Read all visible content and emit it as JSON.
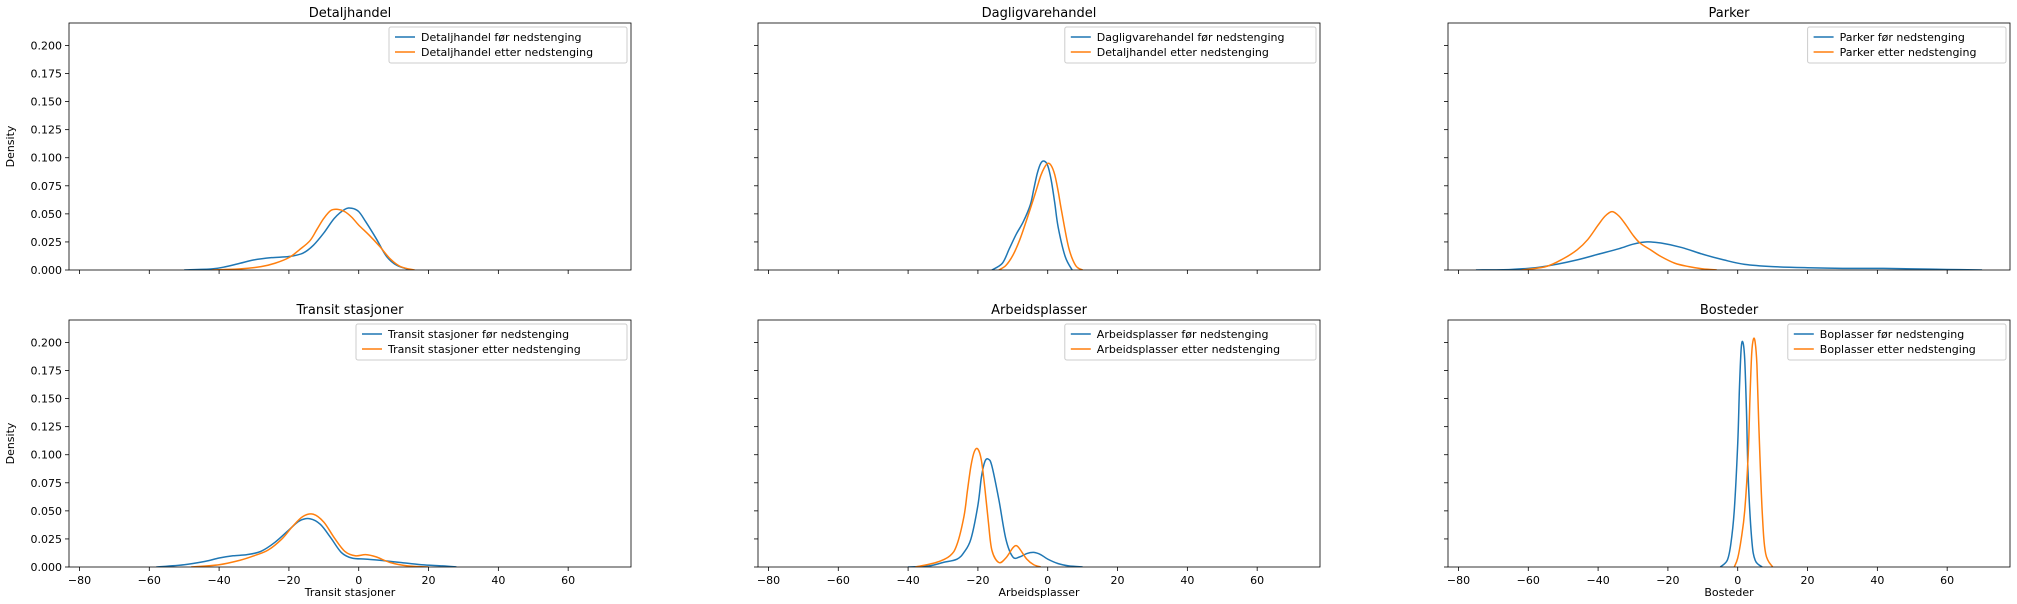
{
  "chart_data": [
    {
      "type": "line",
      "title": "Detaljhandel",
      "xlabel": "",
      "ylabel": "Density",
      "xlim": [
        -83,
        78
      ],
      "ylim": [
        0,
        0.22
      ],
      "xticks": [
        -80,
        -60,
        -40,
        -20,
        0,
        20,
        40,
        60
      ],
      "yticks": [
        0.0,
        0.025,
        0.05,
        0.075,
        0.1,
        0.125,
        0.15,
        0.175,
        0.2
      ],
      "legend": "top-right",
      "series": [
        {
          "name": "Detaljhandel før nedstenging",
          "color": "#1f77b4",
          "x": [
            -50,
            -42,
            -38,
            -34,
            -30,
            -25,
            -20,
            -16,
            -13,
            -10,
            -7,
            -4,
            -2,
            0,
            2,
            5,
            8,
            11,
            15
          ],
          "y": [
            0.0,
            0.001,
            0.003,
            0.006,
            0.009,
            0.011,
            0.012,
            0.015,
            0.022,
            0.033,
            0.046,
            0.054,
            0.055,
            0.052,
            0.043,
            0.028,
            0.012,
            0.004,
            0.0
          ]
        },
        {
          "name": "Detaljhandel etter nedstenging",
          "color": "#ff7f0e",
          "x": [
            -42,
            -34,
            -28,
            -24,
            -20,
            -17,
            -14,
            -12,
            -10,
            -8,
            -6,
            -4,
            -2,
            0,
            3,
            6,
            9,
            12,
            16
          ],
          "y": [
            0.0,
            0.001,
            0.003,
            0.006,
            0.011,
            0.018,
            0.026,
            0.036,
            0.046,
            0.053,
            0.054,
            0.052,
            0.047,
            0.04,
            0.031,
            0.021,
            0.01,
            0.003,
            0.0
          ]
        }
      ]
    },
    {
      "type": "line",
      "title": "Dagligvarehandel",
      "xlabel": "",
      "ylabel": "",
      "xlim": [
        -83,
        78
      ],
      "ylim": [
        0,
        0.22
      ],
      "xticks": [
        -80,
        -60,
        -40,
        -20,
        0,
        20,
        40,
        60
      ],
      "yticks": [
        0.0,
        0.025,
        0.05,
        0.075,
        0.1,
        0.125,
        0.15,
        0.175,
        0.2
      ],
      "legend": "top-right",
      "series": [
        {
          "name": "Dagligvarehandel før nedstenging",
          "color": "#1f77b4",
          "x": [
            -16,
            -13,
            -11,
            -9,
            -7,
            -5,
            -4,
            -3,
            -2,
            -1,
            0,
            1,
            2,
            3,
            5,
            7
          ],
          "y": [
            0.0,
            0.006,
            0.019,
            0.032,
            0.043,
            0.058,
            0.072,
            0.086,
            0.095,
            0.097,
            0.093,
            0.08,
            0.06,
            0.038,
            0.012,
            0.0
          ]
        },
        {
          "name": "Detaljhandel etter nedstenging",
          "color": "#ff7f0e",
          "x": [
            -14,
            -12,
            -10,
            -8,
            -6,
            -4,
            -3,
            -2,
            -1,
            0,
            1,
            2,
            3,
            4,
            6,
            8,
            10
          ],
          "y": [
            0.0,
            0.004,
            0.013,
            0.027,
            0.045,
            0.064,
            0.074,
            0.084,
            0.091,
            0.095,
            0.093,
            0.085,
            0.07,
            0.052,
            0.02,
            0.004,
            0.0
          ]
        }
      ]
    },
    {
      "type": "line",
      "title": "Parker",
      "xlabel": "",
      "ylabel": "",
      "xlim": [
        -83,
        78
      ],
      "ylim": [
        0,
        0.22
      ],
      "xticks": [
        -80,
        -60,
        -40,
        -20,
        0,
        20,
        40,
        60
      ],
      "yticks": [
        0.0,
        0.025,
        0.05,
        0.075,
        0.1,
        0.125,
        0.15,
        0.175,
        0.2
      ],
      "legend": "top-right",
      "series": [
        {
          "name": "Parker før nedstenging",
          "color": "#1f77b4",
          "x": [
            -75,
            -65,
            -58,
            -52,
            -46,
            -40,
            -34,
            -30,
            -26,
            -22,
            -16,
            -10,
            -4,
            2,
            10,
            20,
            30,
            40,
            50,
            60,
            70
          ],
          "y": [
            0.0,
            0.0005,
            0.002,
            0.005,
            0.009,
            0.014,
            0.019,
            0.023,
            0.025,
            0.024,
            0.02,
            0.014,
            0.009,
            0.005,
            0.003,
            0.002,
            0.0015,
            0.0015,
            0.001,
            0.0005,
            0.0
          ]
        },
        {
          "name": "Parker etter nedstenging",
          "color": "#ff7f0e",
          "x": [
            -62,
            -55,
            -50,
            -46,
            -43,
            -40,
            -38,
            -36,
            -34,
            -32,
            -30,
            -28,
            -25,
            -22,
            -18,
            -14,
            -10,
            -6
          ],
          "y": [
            0.0,
            0.003,
            0.01,
            0.018,
            0.027,
            0.04,
            0.048,
            0.052,
            0.048,
            0.04,
            0.031,
            0.024,
            0.018,
            0.012,
            0.006,
            0.003,
            0.001,
            0.0
          ]
        }
      ]
    },
    {
      "type": "line",
      "title": "Transit stasjoner",
      "xlabel": "Transit stasjoner",
      "ylabel": "Density",
      "xlim": [
        -83,
        78
      ],
      "ylim": [
        0,
        0.22
      ],
      "xticks": [
        -80,
        -60,
        -40,
        -20,
        0,
        20,
        40,
        60
      ],
      "yticks": [
        0.0,
        0.025,
        0.05,
        0.075,
        0.1,
        0.125,
        0.15,
        0.175,
        0.2
      ],
      "legend": "top-right",
      "series": [
        {
          "name": "Transit stasjoner før nedstenging",
          "color": "#1f77b4",
          "x": [
            -58,
            -50,
            -44,
            -40,
            -36,
            -32,
            -28,
            -24,
            -20,
            -17,
            -14,
            -11,
            -8,
            -5,
            -2,
            2,
            6,
            12,
            18,
            24,
            28
          ],
          "y": [
            0.0,
            0.002,
            0.005,
            0.008,
            0.01,
            0.011,
            0.014,
            0.022,
            0.033,
            0.041,
            0.043,
            0.038,
            0.026,
            0.013,
            0.008,
            0.007,
            0.006,
            0.004,
            0.002,
            0.001,
            0.0
          ]
        },
        {
          "name": "Transit stasjoner etter nedstenging",
          "color": "#ff7f0e",
          "x": [
            -48,
            -40,
            -34,
            -30,
            -26,
            -22,
            -19,
            -16,
            -13,
            -10,
            -7,
            -4,
            -1,
            2,
            5,
            9,
            14,
            20
          ],
          "y": [
            0.0,
            0.002,
            0.006,
            0.01,
            0.015,
            0.025,
            0.036,
            0.045,
            0.047,
            0.04,
            0.026,
            0.014,
            0.01,
            0.011,
            0.009,
            0.004,
            0.001,
            0.0
          ]
        }
      ]
    },
    {
      "type": "line",
      "title": "Arbeidsplasser",
      "xlabel": "Arbeidsplasser",
      "ylabel": "",
      "xlim": [
        -83,
        78
      ],
      "ylim": [
        0,
        0.22
      ],
      "xticks": [
        -80,
        -60,
        -40,
        -20,
        0,
        20,
        40,
        60
      ],
      "yticks": [
        0.0,
        0.025,
        0.05,
        0.075,
        0.1,
        0.125,
        0.15,
        0.175,
        0.2
      ],
      "legend": "top-right",
      "series": [
        {
          "name": "Arbeidsplasser før nedstenging",
          "color": "#1f77b4",
          "x": [
            -40,
            -34,
            -30,
            -26,
            -24,
            -22,
            -20,
            -19,
            -18,
            -17,
            -16,
            -14,
            -12,
            -10,
            -8,
            -6,
            -4,
            -2,
            0,
            3,
            6,
            10
          ],
          "y": [
            0.0,
            0.001,
            0.004,
            0.007,
            0.013,
            0.025,
            0.055,
            0.08,
            0.094,
            0.096,
            0.09,
            0.06,
            0.025,
            0.009,
            0.009,
            0.012,
            0.013,
            0.011,
            0.007,
            0.003,
            0.001,
            0.0
          ]
        },
        {
          "name": "Arbeidsplasser etter nedstenging",
          "color": "#ff7f0e",
          "x": [
            -38,
            -32,
            -28,
            -26,
            -24,
            -23,
            -22,
            -21,
            -20,
            -19,
            -18,
            -17,
            -16,
            -14,
            -12,
            -10,
            -9,
            -8,
            -6,
            -4,
            -2
          ],
          "y": [
            0.0,
            0.004,
            0.01,
            0.02,
            0.045,
            0.068,
            0.09,
            0.103,
            0.105,
            0.095,
            0.07,
            0.04,
            0.015,
            0.004,
            0.008,
            0.017,
            0.019,
            0.016,
            0.007,
            0.002,
            0.0
          ]
        }
      ]
    },
    {
      "type": "line",
      "title": "Bosteder",
      "xlabel": "Bosteder",
      "ylabel": "",
      "xlim": [
        -83,
        78
      ],
      "ylim": [
        0,
        0.22
      ],
      "xticks": [
        -80,
        -60,
        -40,
        -20,
        0,
        20,
        40,
        60
      ],
      "yticks": [
        0.0,
        0.025,
        0.05,
        0.075,
        0.1,
        0.125,
        0.15,
        0.175,
        0.2
      ],
      "legend": "top-right",
      "series": [
        {
          "name": "Boplasser før nedstenging",
          "color": "#1f77b4",
          "x": [
            -5,
            -3,
            -2,
            -1,
            0,
            0.5,
            1,
            1.5,
            2,
            2.5,
            3,
            4,
            5,
            7
          ],
          "y": [
            0.0,
            0.006,
            0.02,
            0.05,
            0.11,
            0.16,
            0.195,
            0.2,
            0.185,
            0.14,
            0.08,
            0.025,
            0.006,
            0.0
          ]
        },
        {
          "name": "Boplasser etter nedstenging",
          "color": "#ff7f0e",
          "x": [
            -1,
            0,
            1,
            2,
            3,
            3.5,
            4,
            4.5,
            5,
            5.5,
            6,
            7,
            8,
            10
          ],
          "y": [
            0.0,
            0.008,
            0.025,
            0.05,
            0.1,
            0.15,
            0.19,
            0.203,
            0.2,
            0.18,
            0.13,
            0.05,
            0.012,
            0.0
          ]
        }
      ]
    }
  ]
}
